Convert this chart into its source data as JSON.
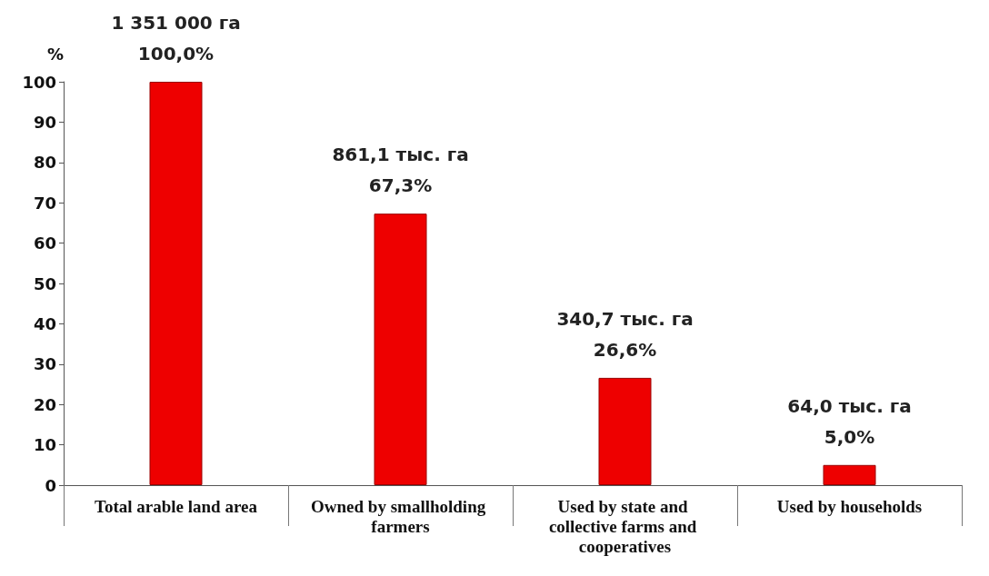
{
  "chart_data": {
    "type": "bar",
    "ylabel": "%",
    "categories": [
      "Total arable land area",
      "Owned by smallholding farmers",
      "Used by state and collective farms and cooperatives",
      "Used by households"
    ],
    "values": [
      100,
      67.3,
      26.6,
      5.0
    ],
    "value_labels": [
      "1 351 000 га\n100,0%",
      "861,1 тыс. га\n67,3%",
      "340,7 тыс. га\n26,6%",
      "64,0 тыс. га\n5,0%"
    ],
    "color": "#ee0000",
    "ylim": [
      0,
      100
    ],
    "yticks": [
      0,
      10,
      20,
      30,
      40,
      50,
      60,
      70,
      80,
      90,
      100
    ],
    "grid": false
  }
}
